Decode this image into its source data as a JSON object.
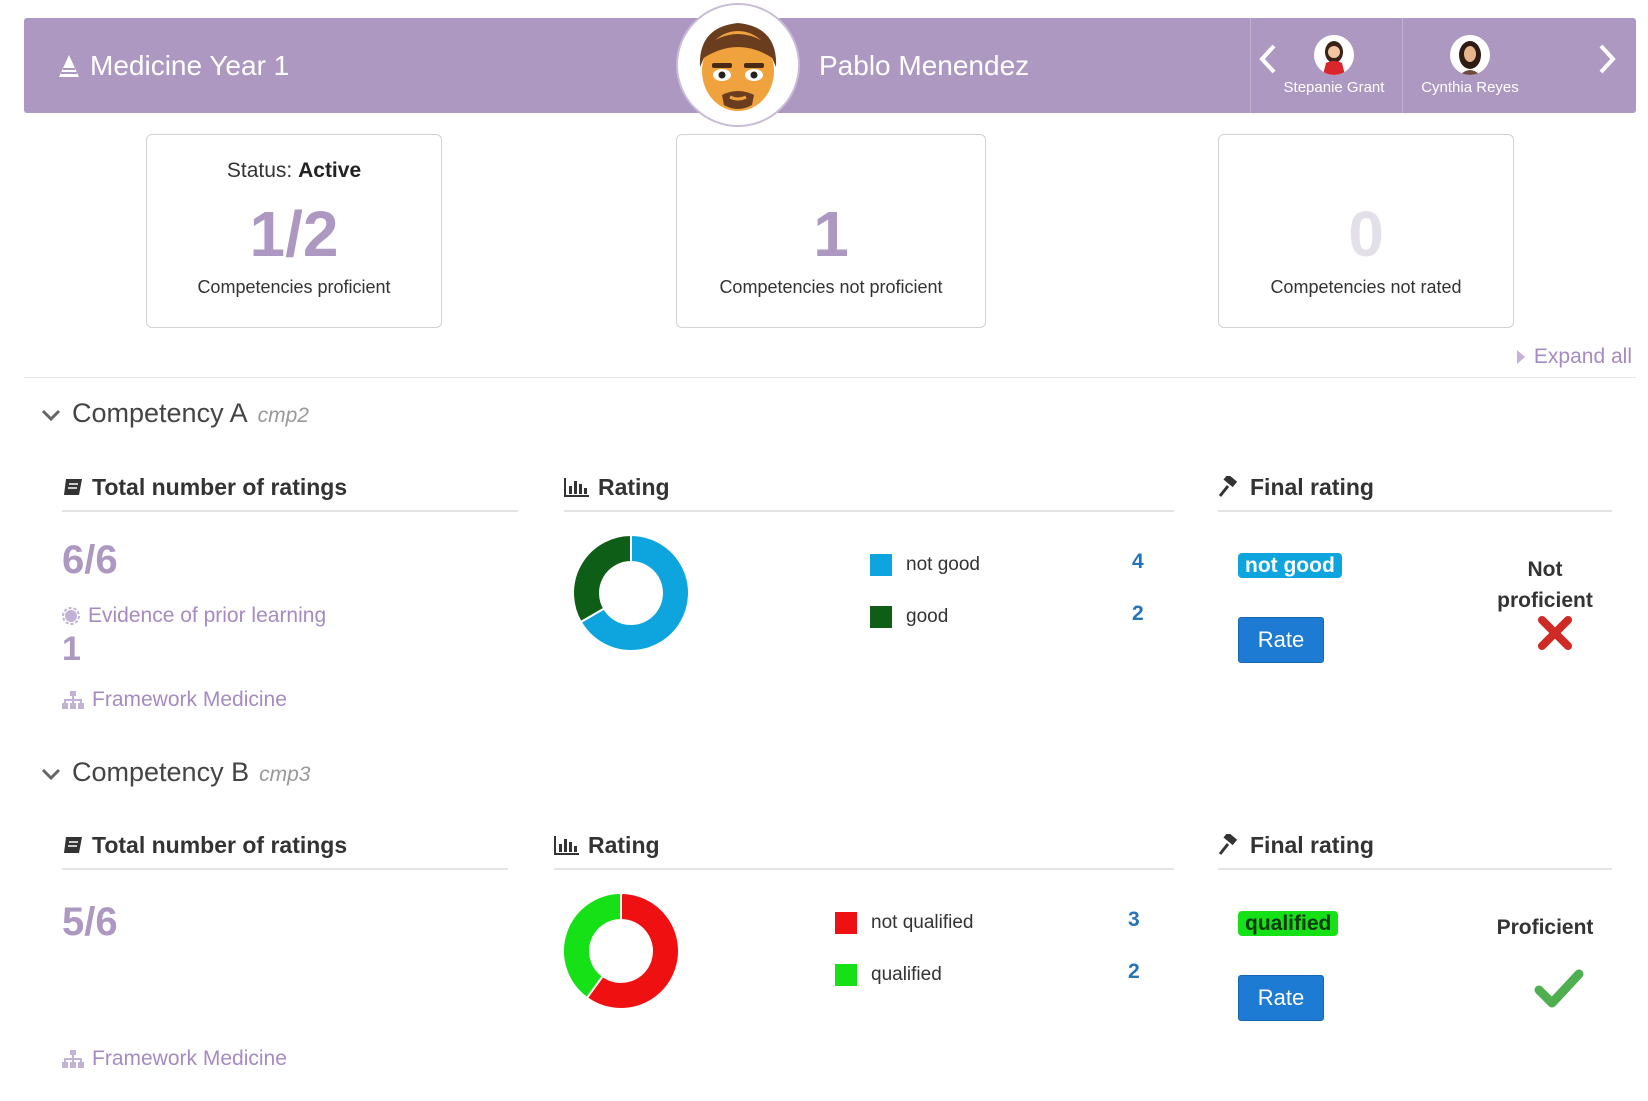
{
  "header": {
    "plan_title": "Medicine Year 1",
    "user_name": "Pablo Menendez",
    "prev_user": "Stepanie Grant",
    "next_user": "Cynthia Reyes",
    "background": "#ad98c2"
  },
  "summary": {
    "status_label": "Status:",
    "status_value": "Active",
    "proficient_count": "1/2",
    "proficient_label": "Competencies proficient",
    "not_proficient_count": "1",
    "not_proficient_label": "Competencies not proficient",
    "not_rated_count": "0",
    "not_rated_label": "Competencies not rated"
  },
  "expand_all": "Expand all",
  "competencies": [
    {
      "name": "Competency A",
      "code": "cmp2",
      "total_heading": "Total number of ratings",
      "total": "6/6",
      "evidence_label": "Evidence of prior learning",
      "evidence_count": "1",
      "framework": "Framework Medicine",
      "rating_heading": "Rating",
      "legend": [
        {
          "label": "not good",
          "count": "4",
          "value": 4,
          "color": "#0ea5de"
        },
        {
          "label": "good",
          "count": "2",
          "value": 2,
          "color": "#0f5e17"
        }
      ],
      "final_heading": "Final rating",
      "final_badge": "not good",
      "final_badge_color": "#0ea5de",
      "rate_label": "Rate",
      "proficiency_line1": "Not",
      "proficiency_line2": "proficient",
      "proficiency_icon": "cross-icon"
    },
    {
      "name": "Competency B",
      "code": "cmp3",
      "total_heading": "Total number of ratings",
      "total": "5/6",
      "framework": "Framework Medicine",
      "rating_heading": "Rating",
      "legend": [
        {
          "label": "not qualified",
          "count": "3",
          "value": 3,
          "color": "#ef1111"
        },
        {
          "label": "qualified",
          "count": "2",
          "value": 2,
          "color": "#16e016"
        }
      ],
      "final_heading": "Final rating",
      "final_badge": "qualified",
      "final_badge_color": "#16e016",
      "rate_label": "Rate",
      "proficiency_line1": "Proficient",
      "proficiency_icon": "check-icon"
    }
  ]
}
